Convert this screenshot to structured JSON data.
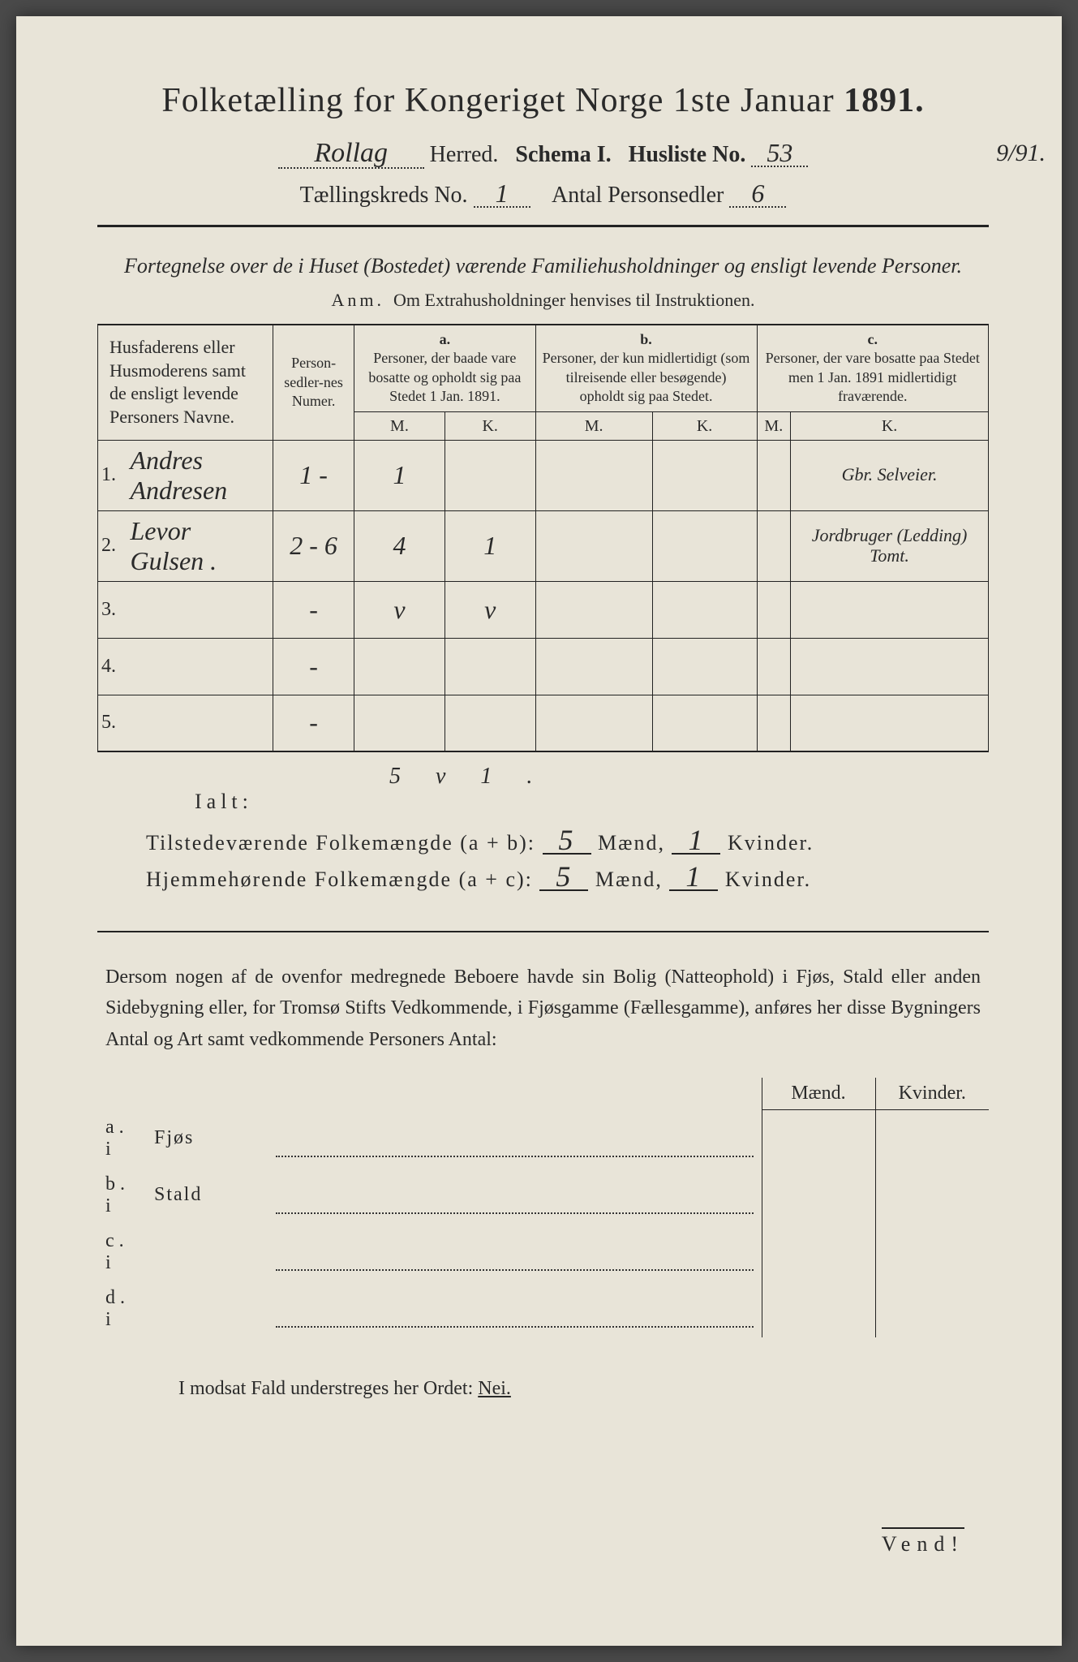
{
  "title_prefix": "Folketælling for Kongeriget Norge 1ste Januar",
  "title_year": "1891.",
  "header": {
    "herred_value": "Rollag",
    "herred_label": "Herred.",
    "schema_label": "Schema I.",
    "husliste_label": "Husliste No.",
    "husliste_no": "53",
    "margin_note": "9/91.",
    "kreds_label": "Tællingskreds No.",
    "kreds_no": "1",
    "antal_label": "Antal Personsedler",
    "antal_no": "6"
  },
  "subtitle": "Fortegnelse over de i Huset (Bostedet) værende Familiehusholdninger og ensligt levende Personer.",
  "anm_label": "Anm.",
  "anm_text": "Om Extrahusholdninger henvises til Instruktionen.",
  "table": {
    "col_names": "Husfaderens eller Husmoderens samt de ensligt levende Personers Navne.",
    "col_numer": "Person-sedler-nes Numer.",
    "col_a_head": "a.",
    "col_a": "Personer, der baade vare bosatte og opholdt sig paa Stedet 1 Jan. 1891.",
    "col_b_head": "b.",
    "col_b": "Personer, der kun midlertidigt (som tilreisende eller besøgende) opholdt sig paa Stedet.",
    "col_c_head": "c.",
    "col_c": "Personer, der vare bosatte paa Stedet men 1 Jan. 1891 midlertidigt fraværende.",
    "mk_m": "M.",
    "mk_k": "K.",
    "rows": [
      {
        "n": "1.",
        "name": "Andres Andresen",
        "numer": "1 -",
        "am": "1",
        "ak": "",
        "bm": "",
        "bk": "",
        "cm": "",
        "ck": "",
        "side": "Gbr. Selveier."
      },
      {
        "n": "2.",
        "name": "Levor Gulsen .",
        "numer": "2 - 6",
        "am": "4",
        "ak": "1",
        "bm": "",
        "bk": "",
        "cm": "",
        "ck": "",
        "side": "Jordbruger (Ledding) Tomt."
      },
      {
        "n": "3.",
        "name": "",
        "numer": "-",
        "am": "v",
        "ak": "v",
        "bm": "",
        "bk": "",
        "cm": "",
        "ck": "",
        "side": ""
      },
      {
        "n": "4.",
        "name": "",
        "numer": "-",
        "am": "",
        "ak": "",
        "bm": "",
        "bk": "",
        "cm": "",
        "ck": "",
        "side": ""
      },
      {
        "n": "5.",
        "name": "",
        "numer": "-",
        "am": "",
        "ak": "",
        "bm": "",
        "bk": "",
        "cm": "",
        "ck": "",
        "side": ""
      }
    ]
  },
  "ialt": {
    "hand_top": "5 v   1 .",
    "label": "Ialt:",
    "line1_label": "Tilstedeværende Folkemængde (a + b):",
    "line2_label": "Hjemmehørende Folkemængde (a + c):",
    "m1": "5",
    "k1": "1",
    "m2": "5",
    "k2": "1",
    "maend": "Mænd,",
    "kvinder": "Kvinder."
  },
  "para_text": "Dersom nogen af de ovenfor medregnede Beboere havde sin Bolig (Natteophold) i Fjøs, Stald eller anden Sidebygning eller, for Tromsø Stifts Vedkommende, i Fjøsgamme (Fællesgamme), anføres her disse Bygningers Antal og Art samt vedkommende Personers Antal:",
  "bldg": {
    "head_m": "Mænd.",
    "head_k": "Kvinder.",
    "rows": [
      {
        "lead": "a.  i",
        "label": "Fjøs"
      },
      {
        "lead": "b.  i",
        "label": "Stald"
      },
      {
        "lead": "c.  i",
        "label": ""
      },
      {
        "lead": "d.  i",
        "label": ""
      }
    ]
  },
  "nei_text_pre": "I modsat Fald understreges her Ordet: ",
  "nei_word": "Nei.",
  "vend": "Vend!"
}
